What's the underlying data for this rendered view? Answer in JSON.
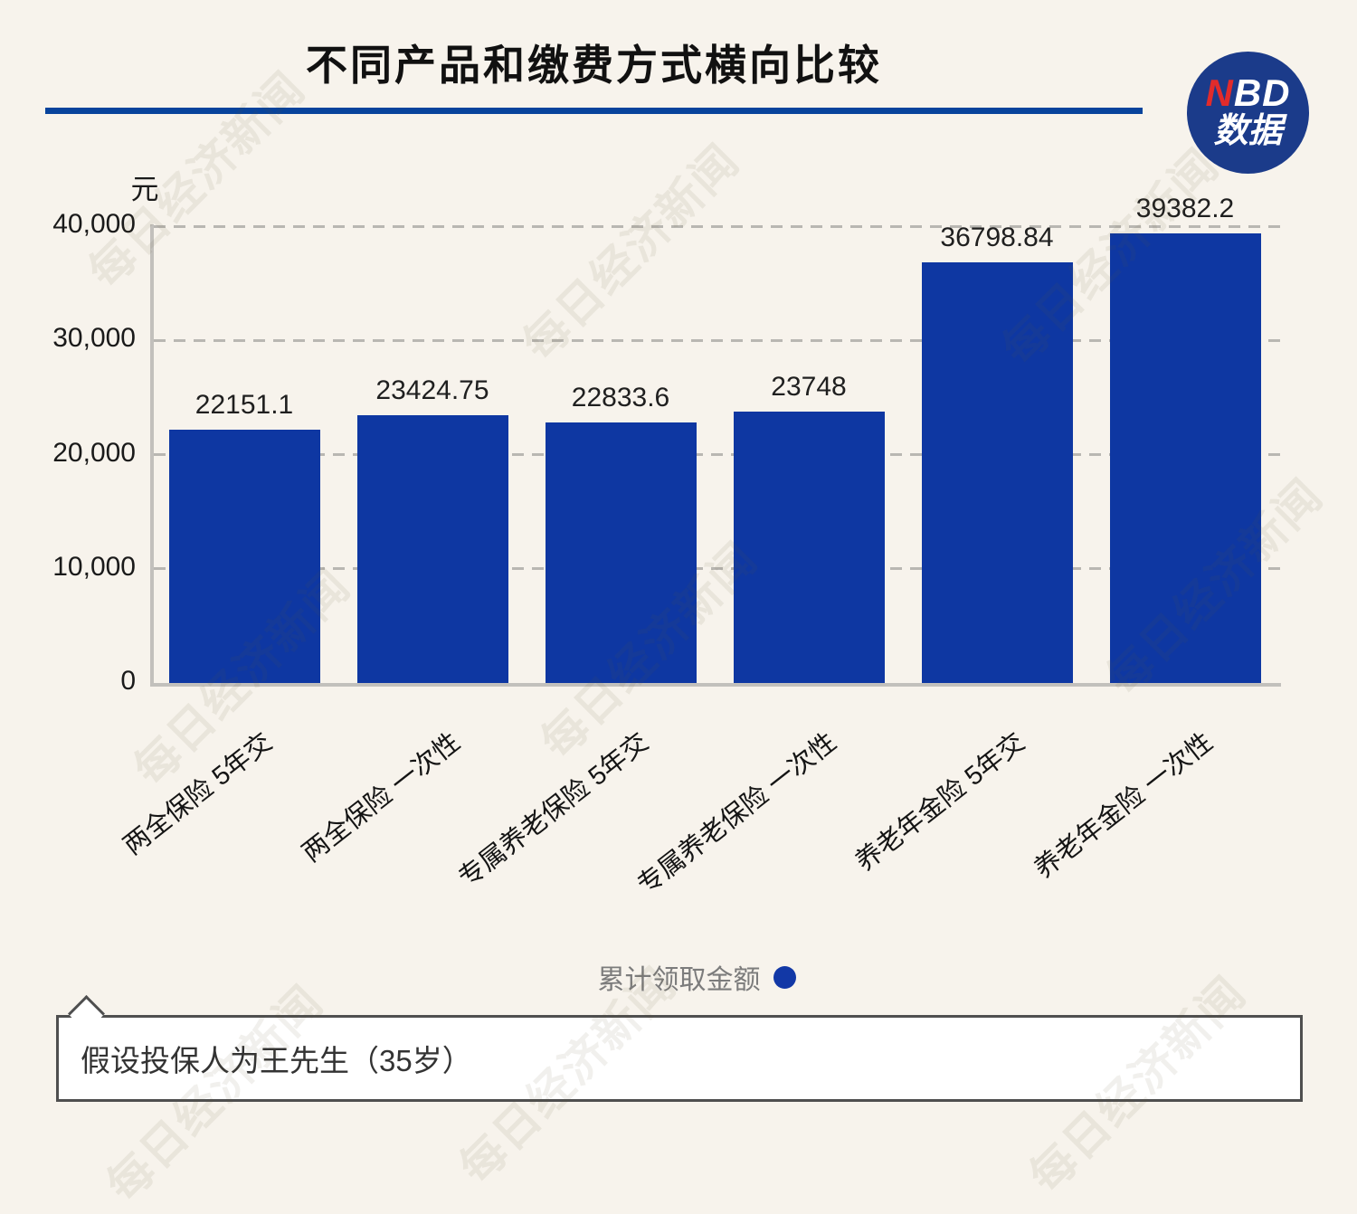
{
  "logo": {
    "n": "N",
    "bd": "BD",
    "sub": "数据"
  },
  "watermark": {
    "text": "每日经济新闻"
  },
  "chart_data": {
    "type": "bar",
    "title": "不同产品和缴费方式横向比较",
    "unit": "元",
    "categories": [
      "两全保险 5年交",
      "两全保险 一次性",
      "专属养老保险 5年交",
      "专属养老保险 一次性",
      "养老年金险 5年交",
      "养老年金险 一次性"
    ],
    "values": [
      22151.1,
      23424.75,
      22833.6,
      23748,
      36798.84,
      39382.2
    ],
    "ylim": [
      0,
      40000
    ],
    "ytick_values": [
      0,
      10000,
      20000,
      30000,
      40000
    ],
    "ytick_labels": [
      "0",
      "10,000",
      "20,000",
      "30,000",
      "40,000"
    ],
    "grid": "horizontal-dashed",
    "legend": {
      "label": "累计领取金额",
      "position": "bottom"
    },
    "series_name": "累计领取金额"
  },
  "footer": {
    "note": "假设投保人为王先生（35岁）"
  },
  "colors": {
    "background": "#f7f3ec",
    "bar": "#0e37a2",
    "title_rule": "#07439c",
    "logo_circle": "#1b3b8a",
    "logo_n": "#e12b2b",
    "legend_dot": "#1238a6",
    "axis": "#c2c0bc"
  }
}
